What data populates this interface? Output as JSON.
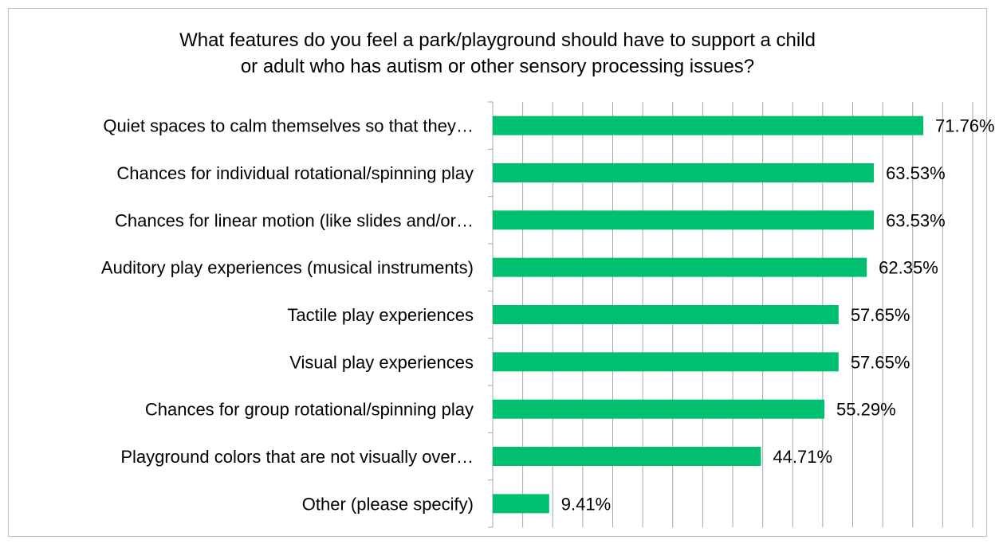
{
  "chart_data": {
    "type": "bar",
    "orientation": "horizontal",
    "title_lines": [
      "What features do you feel a park/playground should have to support a child",
      "or adult who has autism or other sensory processing issues?"
    ],
    "categories": [
      "Quiet spaces to calm themselves so that they…",
      "Chances for individual rotational/spinning play",
      "Chances for linear motion (like slides and/or…",
      "Auditory play experiences (musical instruments)",
      "Tactile play experiences",
      "Visual play experiences",
      "Chances for group rotational/spinning play",
      "Playground colors that are not visually over…",
      "Other (please specify)"
    ],
    "values": [
      71.76,
      63.53,
      63.53,
      62.35,
      57.65,
      57.65,
      55.29,
      44.71,
      9.41
    ],
    "value_labels": [
      "71.76%",
      "63.53%",
      "63.53%",
      "62.35%",
      "57.65%",
      "57.65%",
      "55.29%",
      "44.71%",
      "9.41%"
    ],
    "xlim": [
      0,
      80
    ],
    "x_gridline_step": 5,
    "grid": true,
    "bar_color": "#00bf6f",
    "grid_color": "#a6a6a6",
    "legend": "none"
  }
}
